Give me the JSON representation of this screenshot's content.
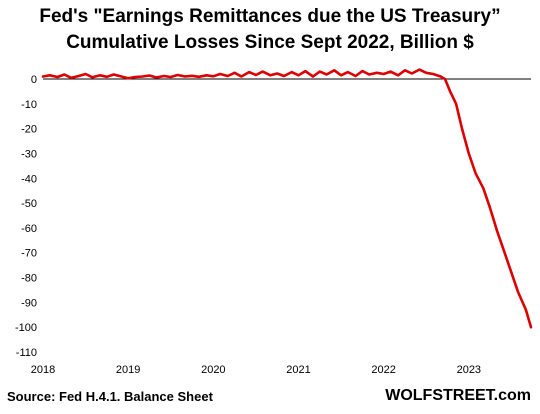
{
  "chart_data": {
    "type": "line",
    "title": "Fed's \"Earnings Remittances due the US Treasury”",
    "subtitle": "Cumulative Losses Since Sept 2022, Billion $",
    "xlabel": "",
    "ylabel": "",
    "xlim": [
      2018.0,
      2023.73
    ],
    "ylim": [
      -110,
      0
    ],
    "y_ticks": [
      0,
      -10,
      -20,
      -30,
      -40,
      -50,
      -60,
      -70,
      -80,
      -90,
      -100,
      -110
    ],
    "y_tick_labels": [
      "0",
      "-10",
      "-20",
      "-30",
      "-40",
      "-50",
      "-60",
      "-70",
      "-80",
      "-90",
      "-100",
      "-110"
    ],
    "x_ticks": [
      2018,
      2019,
      2020,
      2021,
      2022,
      2023
    ],
    "x_tick_labels": [
      "2018",
      "2019",
      "2020",
      "2021",
      "2022",
      "2023"
    ],
    "series_color": "#dd0000",
    "series": [
      {
        "name": "",
        "x": [
          2018.0,
          2018.08,
          2018.17,
          2018.25,
          2018.33,
          2018.42,
          2018.5,
          2018.58,
          2018.67,
          2018.75,
          2018.83,
          2018.92,
          2019.0,
          2019.08,
          2019.17,
          2019.25,
          2019.33,
          2019.42,
          2019.5,
          2019.58,
          2019.67,
          2019.75,
          2019.83,
          2019.92,
          2020.0,
          2020.08,
          2020.17,
          2020.25,
          2020.33,
          2020.42,
          2020.5,
          2020.58,
          2020.67,
          2020.75,
          2020.83,
          2020.92,
          2021.0,
          2021.08,
          2021.17,
          2021.25,
          2021.33,
          2021.42,
          2021.5,
          2021.58,
          2021.67,
          2021.75,
          2021.83,
          2021.92,
          2022.0,
          2022.08,
          2022.17,
          2022.25,
          2022.33,
          2022.42,
          2022.5,
          2022.58,
          2022.67,
          2022.72,
          2022.78,
          2022.85,
          2022.92,
          2023.0,
          2023.08,
          2023.17,
          2023.25,
          2023.33,
          2023.42,
          2023.5,
          2023.58,
          2023.67,
          2023.73
        ],
        "y": [
          1.0,
          1.5,
          0.8,
          1.8,
          0.5,
          1.2,
          2.0,
          0.7,
          1.5,
          0.9,
          1.8,
          1.0,
          0.3,
          0.8,
          1.0,
          1.4,
          0.6,
          1.2,
          0.8,
          1.6,
          1.0,
          1.3,
          0.9,
          1.5,
          1.1,
          2.0,
          1.2,
          2.5,
          1.0,
          2.8,
          1.6,
          3.0,
          1.5,
          2.2,
          1.2,
          2.8,
          1.5,
          3.2,
          1.0,
          3.0,
          1.8,
          3.5,
          1.5,
          2.8,
          1.2,
          3.2,
          1.8,
          2.5,
          2.0,
          3.0,
          1.5,
          3.5,
          2.2,
          3.8,
          2.5,
          2.0,
          1.0,
          0.0,
          -5.0,
          -10.0,
          -20.0,
          -30.0,
          -38.0,
          -44.0,
          -52.0,
          -61.0,
          -70.0,
          -78.0,
          -86.0,
          -93.0,
          -100.0
        ]
      }
    ]
  },
  "footer": {
    "source": "Source: Fed H.4.1. Balance Sheet",
    "brand": "WOLFSTREET.com"
  }
}
